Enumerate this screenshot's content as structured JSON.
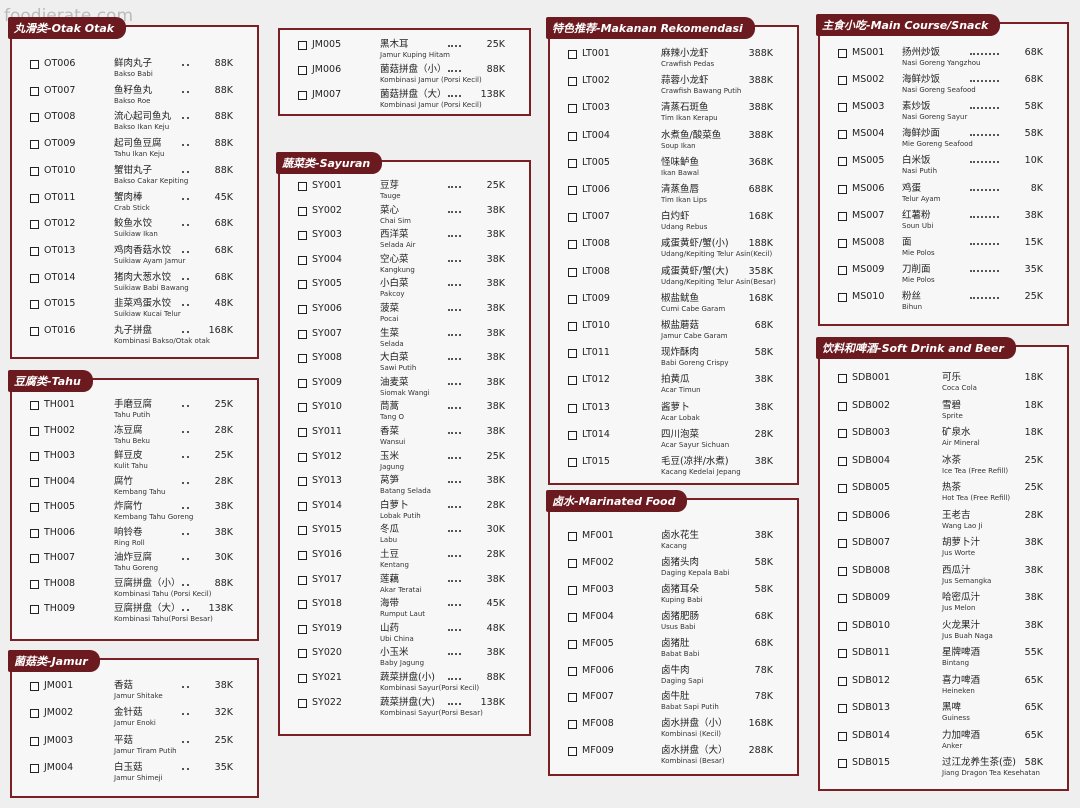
{
  "watermark": "foodierate.com",
  "sections": [
    {
      "title": "丸滑类-Otak Otak",
      "items": [
        [
          "OT006",
          "鲜肉丸子",
          "Bakso Babi",
          "88K"
        ],
        [
          "OT007",
          "鱼籽鱼丸",
          "Bakso Roe",
          "88K"
        ],
        [
          "OT008",
          "流心起司鱼丸",
          "Bakso Ikan Keju",
          "88K"
        ],
        [
          "OT009",
          "起司鱼豆腐",
          "Tahu Ikan Keju",
          "88K"
        ],
        [
          "OT010",
          "蟹钳丸子",
          "Bakso Cakar Kepiting",
          "88K"
        ],
        [
          "OT011",
          "蟹肉棒",
          "Crab Stick",
          "45K"
        ],
        [
          "OT012",
          "鲛鱼水饺",
          "Suikiaw Ikan",
          "68K"
        ],
        [
          "OT013",
          "鸡肉香菇水饺",
          "Suikiaw Ayam Jamur",
          "68K"
        ],
        [
          "OT014",
          "猪肉大葱水饺",
          "Suikiaw Babi Bawang",
          "68K"
        ],
        [
          "OT015",
          "韭菜鸡蛋水饺",
          "Suikiaw Kucai Telur",
          "48K"
        ],
        [
          "OT016",
          "丸子拼盘",
          "Kombinasi Bakso/Otak otak",
          "168K"
        ]
      ]
    },
    {
      "title": "豆腐类-Tahu",
      "items": [
        [
          "TH001",
          "手磨豆腐",
          "Tahu Putih",
          "25K"
        ],
        [
          "TH002",
          "冻豆腐",
          "Tahu Beku",
          "28K"
        ],
        [
          "TH003",
          "鲜豆皮",
          "Kulit Tahu",
          "25K"
        ],
        [
          "TH004",
          "腐竹",
          "Kembang Tahu",
          "28K"
        ],
        [
          "TH005",
          "炸腐竹",
          "Kembang Tahu Goreng",
          "38K"
        ],
        [
          "TH006",
          "响铃卷",
          "Ring Roll",
          "38K"
        ],
        [
          "TH007",
          "油炸豆腐",
          "Tahu Goreng",
          "30K"
        ],
        [
          "TH008",
          "豆腐拼盘（小）",
          "Kombinasi Tahu (Porsi Kecil)",
          "88K"
        ],
        [
          "TH009",
          "豆腐拼盘（大）",
          "Kombinasi Tahu(Porsi Besar)",
          "138K"
        ]
      ]
    },
    {
      "title": "菌菇类-Jamur",
      "items": [
        [
          "JM001",
          "香菇",
          "Jamur Shitake",
          "38K"
        ],
        [
          "JM002",
          "金针菇",
          "Jamur Enoki",
          "32K"
        ],
        [
          "JM003",
          "平菇",
          "Jamur Tiram Putih",
          "25K"
        ],
        [
          "JM004",
          "白玉菇",
          "Jamur Shimeji",
          "35K"
        ]
      ]
    },
    {
      "items": [
        [
          "JM005",
          "黑木耳",
          "Jamur Kuping Hitam",
          "25K"
        ],
        [
          "JM006",
          "菌菇拼盘（小）",
          "Kombinasi Jamur (Porsi Kecil)",
          "88K"
        ],
        [
          "JM007",
          "菌菇拼盘（大）",
          "Kombinasi Jamur (Porsi Kecil)",
          "138K"
        ]
      ]
    },
    {
      "title": "蔬菜类-Sayuran",
      "items": [
        [
          "SY001",
          "豆芽",
          "Tauge",
          "25K"
        ],
        [
          "SY002",
          "菜心",
          "Chai Sim",
          "38K"
        ],
        [
          "SY003",
          "西洋菜",
          "Selada Air",
          "38K"
        ],
        [
          "SY004",
          "空心菜",
          "Kangkung",
          "38K"
        ],
        [
          "SY005",
          "小白菜",
          "Pakcoy",
          "38K"
        ],
        [
          "SY006",
          "菠菜",
          "Pocai",
          "38K"
        ],
        [
          "SY007",
          "生菜",
          "Selada",
          "38K"
        ],
        [
          "SY008",
          "大白菜",
          "Sawi Putih",
          "38K"
        ],
        [
          "SY009",
          "油麦菜",
          "Siomak Wangi",
          "38K"
        ],
        [
          "SY010",
          "茼蒿",
          "Tang O",
          "38K"
        ],
        [
          "SY011",
          "香菜",
          "Wansui",
          "38K"
        ],
        [
          "SY012",
          "玉米",
          "Jagung",
          "25K"
        ],
        [
          "SY013",
          "莴笋",
          "Batang Selada",
          "38K"
        ],
        [
          "SY014",
          "白萝卜",
          "Lobak Putih",
          "28K"
        ],
        [
          "SY015",
          "冬瓜",
          "Labu",
          "30K"
        ],
        [
          "SY016",
          "土豆",
          "Kentang",
          "28K"
        ],
        [
          "SY017",
          "莲藕",
          "Akar Teratai",
          "38K"
        ],
        [
          "SY018",
          "海带",
          "Rumput Laut",
          "45K"
        ],
        [
          "SY019",
          "山药",
          "Ubi China",
          "48K"
        ],
        [
          "SY020",
          "小玉米",
          "Baby Jagung",
          "38K"
        ],
        [
          "SY021",
          "蔬菜拼盘(小)",
          "Kombinasi Sayur(Porsi Kecil)",
          "88K"
        ],
        [
          "SY022",
          "蔬菜拼盘(大)",
          "Kombinasi Sayur(Porsi Besar)",
          "138K"
        ]
      ]
    },
    {
      "title": "特色推荐-Makanan Rekomendasi",
      "items": [
        [
          "LT001",
          "麻辣小龙虾",
          "Crawfish Pedas",
          "388K"
        ],
        [
          "LT002",
          "蒜蓉小龙虾",
          "Crawfish Bawang Putih",
          "388K"
        ],
        [
          "LT003",
          "清蒸石斑鱼",
          "Tim Ikan Kerapu",
          "388K"
        ],
        [
          "LT004",
          "水煮鱼/酸菜鱼",
          "Soup Ikan",
          "388K"
        ],
        [
          "LT005",
          "怪味鲈鱼",
          "Ikan Bawal",
          "368K"
        ],
        [
          "LT006",
          "清蒸鱼唇",
          "Tim Ikan Lips",
          "688K"
        ],
        [
          "LT007",
          "白灼虾",
          "Udang Rebus",
          "168K"
        ],
        [
          "LT008",
          "咸蛋黄虾/蟹(小)",
          "Udang/Kepiting Telur Asin(Kecil)",
          "188K"
        ],
        [
          "LT008",
          "咸蛋黄虾/蟹(大)",
          "Udang/Kepiting Telur Asin(Besar)",
          "358K"
        ],
        [
          "LT009",
          "椒盐鱿鱼",
          "Cumi Cabe Garam",
          "168K"
        ],
        [
          "LT010",
          "椒盐蘑菇",
          "Jamur Cabe Garam",
          "68K"
        ],
        [
          "LT011",
          "现炸酥肉",
          "Babi Goreng Crispy",
          "58K"
        ],
        [
          "LT012",
          "拍黄瓜",
          "Acar Timun",
          "38K"
        ],
        [
          "LT013",
          "酱萝卜",
          "Acar Lobak",
          "38K"
        ],
        [
          "LT014",
          "四川泡菜",
          "Acar Sayur Sichuan",
          "28K"
        ],
        [
          "LT015",
          "毛豆(凉拌/水煮)",
          "Kacang Kedelai Jepang",
          "38K"
        ]
      ]
    },
    {
      "title": "卤水-Marinated Food",
      "items": [
        [
          "MF001",
          "卤水花生",
          "Kacang",
          "38K"
        ],
        [
          "MF002",
          "卤猪头肉",
          "Daging Kepala Babi",
          "58K"
        ],
        [
          "MF003",
          "卤猪耳朵",
          "Kuping Babi",
          "58K"
        ],
        [
          "MF004",
          "卤猪肥肠",
          "Usus Babi",
          "68K"
        ],
        [
          "MF005",
          "卤猪肚",
          "Babat Babi",
          "68K"
        ],
        [
          "MF006",
          "卤牛肉",
          "Daging Sapi",
          "78K"
        ],
        [
          "MF007",
          "卤牛肚",
          "Babat Sapi Putih",
          "78K"
        ],
        [
          "MF008",
          "卤水拼盘（小）",
          "Kombinasi (Kecil)",
          "168K"
        ],
        [
          "MF009",
          "卤水拼盘（大）",
          "Kombinasi (Besar)",
          "288K"
        ]
      ]
    },
    {
      "title": "主食小吃-Main Course/Snack",
      "items": [
        [
          "MS001",
          "扬州炒饭",
          "Nasi Goreng Yangzhou",
          "68K"
        ],
        [
          "MS002",
          "海鲜炒饭",
          "Nasi Goreng Seafood",
          "68K"
        ],
        [
          "MS003",
          "素炒饭",
          "Nasi Goreng Sayur",
          "58K"
        ],
        [
          "MS004",
          "海鲜炒面",
          "Mie Goreng Seafood",
          "58K"
        ],
        [
          "MS005",
          "白米饭",
          "Nasi Putih",
          "10K"
        ],
        [
          "MS006",
          "鸡蛋",
          "Telur Ayam",
          "8K"
        ],
        [
          "MS007",
          "红薯粉",
          "Soun Ubi",
          "38K"
        ],
        [
          "MS008",
          "面",
          "Mie Polos",
          "15K"
        ],
        [
          "MS009",
          "刀削面",
          "Mie Polos",
          "35K"
        ],
        [
          "MS010",
          "粉丝",
          "Bihun",
          "25K"
        ]
      ]
    },
    {
      "title": "饮料和啤酒-Soft Drink and Beer",
      "items": [
        [
          "SDB001",
          "可乐",
          "Coca Cola",
          "18K"
        ],
        [
          "SDB002",
          "雪碧",
          "Sprite",
          "18K"
        ],
        [
          "SDB003",
          "矿泉水",
          "Air Mineral",
          "18K"
        ],
        [
          "SDB004",
          "冰茶",
          "Ice Tea (Free Refill)",
          "25K"
        ],
        [
          "SDB005",
          "热茶",
          "Hot Tea (Free Refill)",
          "25K"
        ],
        [
          "SDB006",
          "王老吉",
          "Wang Lao Ji",
          "28K"
        ],
        [
          "SDB007",
          "胡萝卜汁",
          "Jus Worte",
          "38K"
        ],
        [
          "SDB008",
          "西瓜汁",
          "Jus Semangka",
          "38K"
        ],
        [
          "SDB009",
          "哈密瓜汁",
          "Jus Melon",
          "38K"
        ],
        [
          "SDB010",
          "火龙果汁",
          "Jus Buah Naga",
          "38K"
        ],
        [
          "SDB011",
          "星牌啤酒",
          "Bintang",
          "55K"
        ],
        [
          "SDB012",
          "喜力啤酒",
          "Heineken",
          "65K"
        ],
        [
          "SDB013",
          "黑啤",
          "Guiness",
          "65K"
        ],
        [
          "SDB014",
          "力加啤酒",
          "Anker",
          "65K"
        ],
        [
          "SDB015",
          "过江龙养生茶(壶)",
          "Jiang Dragon Tea Kesehatan",
          "58K"
        ]
      ]
    }
  ]
}
